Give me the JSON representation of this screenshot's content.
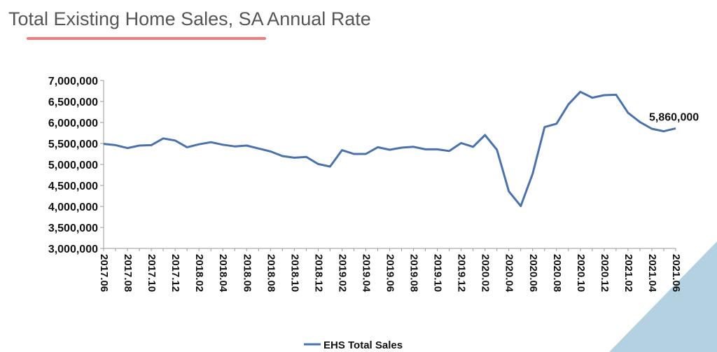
{
  "header": {
    "title": "Total Existing Home Sales, SA Annual Rate"
  },
  "colors": {
    "line": "#4a72ad",
    "accent_underline": "#f47c7c",
    "corner": "#b3d1e1"
  },
  "chart_data": {
    "type": "line",
    "title": "Total Existing Home Sales, SA Annual Rate",
    "xlabel": "",
    "ylabel": "",
    "ylim": [
      3000000,
      7000000
    ],
    "yticks": [
      "3,000,000",
      "3,500,000",
      "4,000,000",
      "4,500,000",
      "5,000,000",
      "5,500,000",
      "6,000,000",
      "6,500,000",
      "7,000,000"
    ],
    "xticks": [
      "2017.06",
      "2017.08",
      "2017.10",
      "2017.12",
      "2018.02",
      "2018.04",
      "2018.06",
      "2018.08",
      "2018.10",
      "2018.12",
      "2019.02",
      "2019.04",
      "2019.06",
      "2019.08",
      "2019.10",
      "2019.12",
      "2020.02",
      "2020.04",
      "2020.06",
      "2020.08",
      "2020.10",
      "2020.12",
      "2021.02",
      "2021.04",
      "2021.06"
    ],
    "x": [
      "2017.06",
      "2017.07",
      "2017.08",
      "2017.09",
      "2017.10",
      "2017.11",
      "2017.12",
      "2018.01",
      "2018.02",
      "2018.03",
      "2018.04",
      "2018.05",
      "2018.06",
      "2018.07",
      "2018.08",
      "2018.09",
      "2018.10",
      "2018.11",
      "2018.12",
      "2019.01",
      "2019.02",
      "2019.03",
      "2019.04",
      "2019.05",
      "2019.06",
      "2019.07",
      "2019.08",
      "2019.09",
      "2019.10",
      "2019.11",
      "2019.12",
      "2020.01",
      "2020.02",
      "2020.03",
      "2020.04",
      "2020.05",
      "2020.06",
      "2020.07",
      "2020.08",
      "2020.09",
      "2020.10",
      "2020.11",
      "2020.12",
      "2021.01",
      "2021.02",
      "2021.03",
      "2021.04",
      "2021.05",
      "2021.06"
    ],
    "series": [
      {
        "name": "EHS Total Sales",
        "values": [
          5490000,
          5460000,
          5390000,
          5450000,
          5460000,
          5620000,
          5570000,
          5410000,
          5480000,
          5530000,
          5470000,
          5430000,
          5450000,
          5380000,
          5310000,
          5200000,
          5160000,
          5180000,
          5010000,
          4950000,
          5340000,
          5250000,
          5250000,
          5410000,
          5350000,
          5400000,
          5420000,
          5360000,
          5360000,
          5320000,
          5510000,
          5420000,
          5700000,
          5350000,
          4360000,
          4010000,
          4780000,
          5890000,
          5970000,
          6430000,
          6730000,
          6590000,
          6650000,
          6660000,
          6230000,
          6010000,
          5850000,
          5790000,
          5860000
        ]
      }
    ],
    "data_labels": [
      {
        "index": 48,
        "text": "5,860,000"
      }
    ],
    "legend": {
      "position": "bottom",
      "label": "EHS Total Sales"
    },
    "grid": false
  }
}
